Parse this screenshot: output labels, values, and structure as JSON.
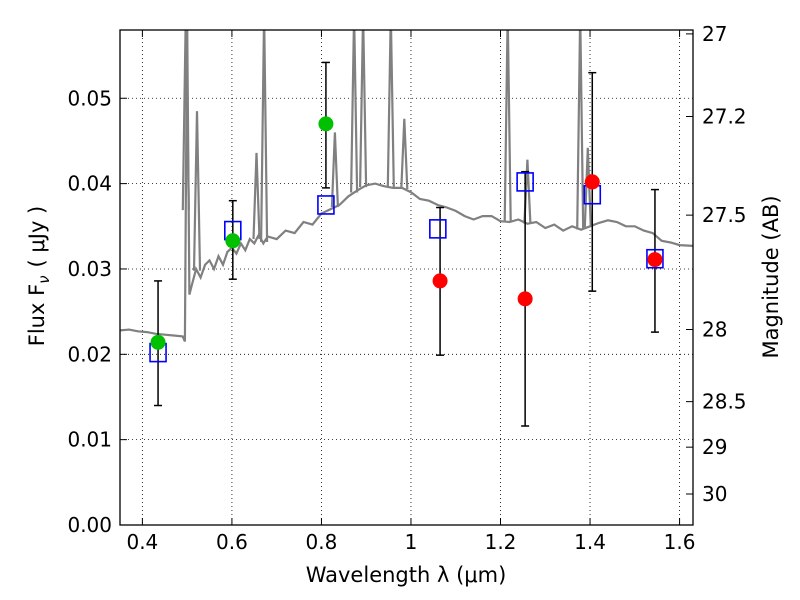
{
  "chart_data": {
    "type": "scatter",
    "xlabel": "Wavelength  λ (μm)",
    "ylabel": "Flux  F",
    "ylabel_sub": "ν",
    "ylabel_unit": "( μJy )",
    "y2label": "Magnitude (AB)",
    "xlim": [
      0.35,
      1.63
    ],
    "ylim": [
      0.0,
      0.058
    ],
    "grid": true,
    "x_ticks": [
      0.4,
      0.6,
      0.8,
      1.0,
      1.2,
      1.4,
      1.6
    ],
    "x_tick_labels": [
      "0.4",
      "0.6",
      "0.8",
      "1",
      "1.2",
      "1.4",
      "1.6"
    ],
    "y_ticks": [
      0.0,
      0.01,
      0.02,
      0.03,
      0.04,
      0.05
    ],
    "y_tick_labels": [
      "0.00",
      "0.01",
      "0.02",
      "0.03",
      "0.04",
      "0.05"
    ],
    "y2_ticks": [
      27,
      27.2,
      27.5,
      28,
      28.5,
      29,
      30
    ],
    "y2_tick_labels": [
      "27",
      "27.2",
      "27.5",
      "28",
      "28.5",
      "29",
      "30"
    ],
    "colors": {
      "model": "#808080",
      "model_photometry": "#0000ff",
      "detected": "#00c000",
      "low_significance": "#ff0000",
      "errorbar": "#000000"
    },
    "model_spectrum": {
      "name": "model spectrum",
      "x": [
        0.35,
        0.37,
        0.39,
        0.41,
        0.43,
        0.45,
        0.47,
        0.49,
        0.495,
        0.5,
        0.505,
        0.51,
        0.52,
        0.53,
        0.54,
        0.55,
        0.56,
        0.57,
        0.58,
        0.59,
        0.6,
        0.61,
        0.62,
        0.63,
        0.64,
        0.65,
        0.66,
        0.67,
        0.68,
        0.7,
        0.72,
        0.74,
        0.76,
        0.78,
        0.8,
        0.82,
        0.84,
        0.86,
        0.88,
        0.9,
        0.92,
        0.94,
        0.96,
        0.98,
        1.0,
        1.02,
        1.04,
        1.06,
        1.08,
        1.1,
        1.12,
        1.14,
        1.16,
        1.18,
        1.2,
        1.22,
        1.24,
        1.26,
        1.28,
        1.3,
        1.32,
        1.34,
        1.36,
        1.38,
        1.4,
        1.42,
        1.44,
        1.46,
        1.48,
        1.5,
        1.52,
        1.54,
        1.56,
        1.58,
        1.6,
        1.63
      ],
      "y": [
        0.0228,
        0.0229,
        0.0227,
        0.0226,
        0.0224,
        0.0223,
        0.0222,
        0.0221,
        0.0215,
        0.06,
        0.027,
        0.028,
        0.03,
        0.029,
        0.0305,
        0.031,
        0.03,
        0.0315,
        0.0305,
        0.032,
        0.0325,
        0.0318,
        0.033,
        0.0322,
        0.0335,
        0.033,
        0.034,
        0.033,
        0.0338,
        0.0335,
        0.0345,
        0.0342,
        0.0355,
        0.0352,
        0.0365,
        0.037,
        0.0375,
        0.0385,
        0.0392,
        0.0398,
        0.04,
        0.0397,
        0.0395,
        0.0395,
        0.039,
        0.0382,
        0.038,
        0.0375,
        0.0372,
        0.0368,
        0.0362,
        0.0358,
        0.0362,
        0.0362,
        0.0356,
        0.0355,
        0.0358,
        0.0353,
        0.0355,
        0.0348,
        0.0352,
        0.0345,
        0.035,
        0.0346,
        0.035,
        0.0354,
        0.0357,
        0.0355,
        0.035,
        0.035,
        0.0345,
        0.0342,
        0.0333,
        0.0331,
        0.0328,
        0.0327
      ]
    },
    "emission_lines": [
      {
        "x": 0.497,
        "peak": 0.06
      },
      {
        "x": 0.522,
        "peak": 0.0485
      },
      {
        "x": 0.655,
        "peak": 0.0436
      },
      {
        "x": 0.672,
        "peak": 0.06
      },
      {
        "x": 0.83,
        "peak": 0.046
      },
      {
        "x": 0.873,
        "peak": 0.06
      },
      {
        "x": 0.893,
        "peak": 0.06
      },
      {
        "x": 0.955,
        "peak": 0.06
      },
      {
        "x": 0.985,
        "peak": 0.0476
      },
      {
        "x": 1.216,
        "peak": 0.06
      },
      {
        "x": 1.26,
        "peak": 0.0428
      },
      {
        "x": 1.378,
        "peak": 0.06
      },
      {
        "x": 1.395,
        "peak": 0.0442
      }
    ],
    "model_photometry": {
      "name": "model photometry",
      "x": [
        0.435,
        0.602,
        0.81,
        1.06,
        1.255,
        1.405,
        1.545
      ],
      "y": [
        0.0202,
        0.0345,
        0.0375,
        0.0347,
        0.0402,
        0.0387,
        0.0312
      ]
    },
    "observed_detected": {
      "name": "observed (green)",
      "x": [
        0.435,
        0.602,
        0.81
      ],
      "y": [
        0.0214,
        0.0333,
        0.047
      ],
      "yerr_low": [
        0.0074,
        0.0045,
        0.0075
      ],
      "yerr_high": [
        0.0072,
        0.0047,
        0.0072
      ]
    },
    "observed_low": {
      "name": "observed (red)",
      "x": [
        1.065,
        1.255,
        1.405,
        1.545
      ],
      "y": [
        0.0286,
        0.0265,
        0.0402,
        0.0311
      ],
      "yerr_low": [
        0.0087,
        0.0149,
        0.0128,
        0.0085
      ],
      "yerr_high": [
        0.0086,
        0.0149,
        0.0128,
        0.0082
      ]
    }
  }
}
